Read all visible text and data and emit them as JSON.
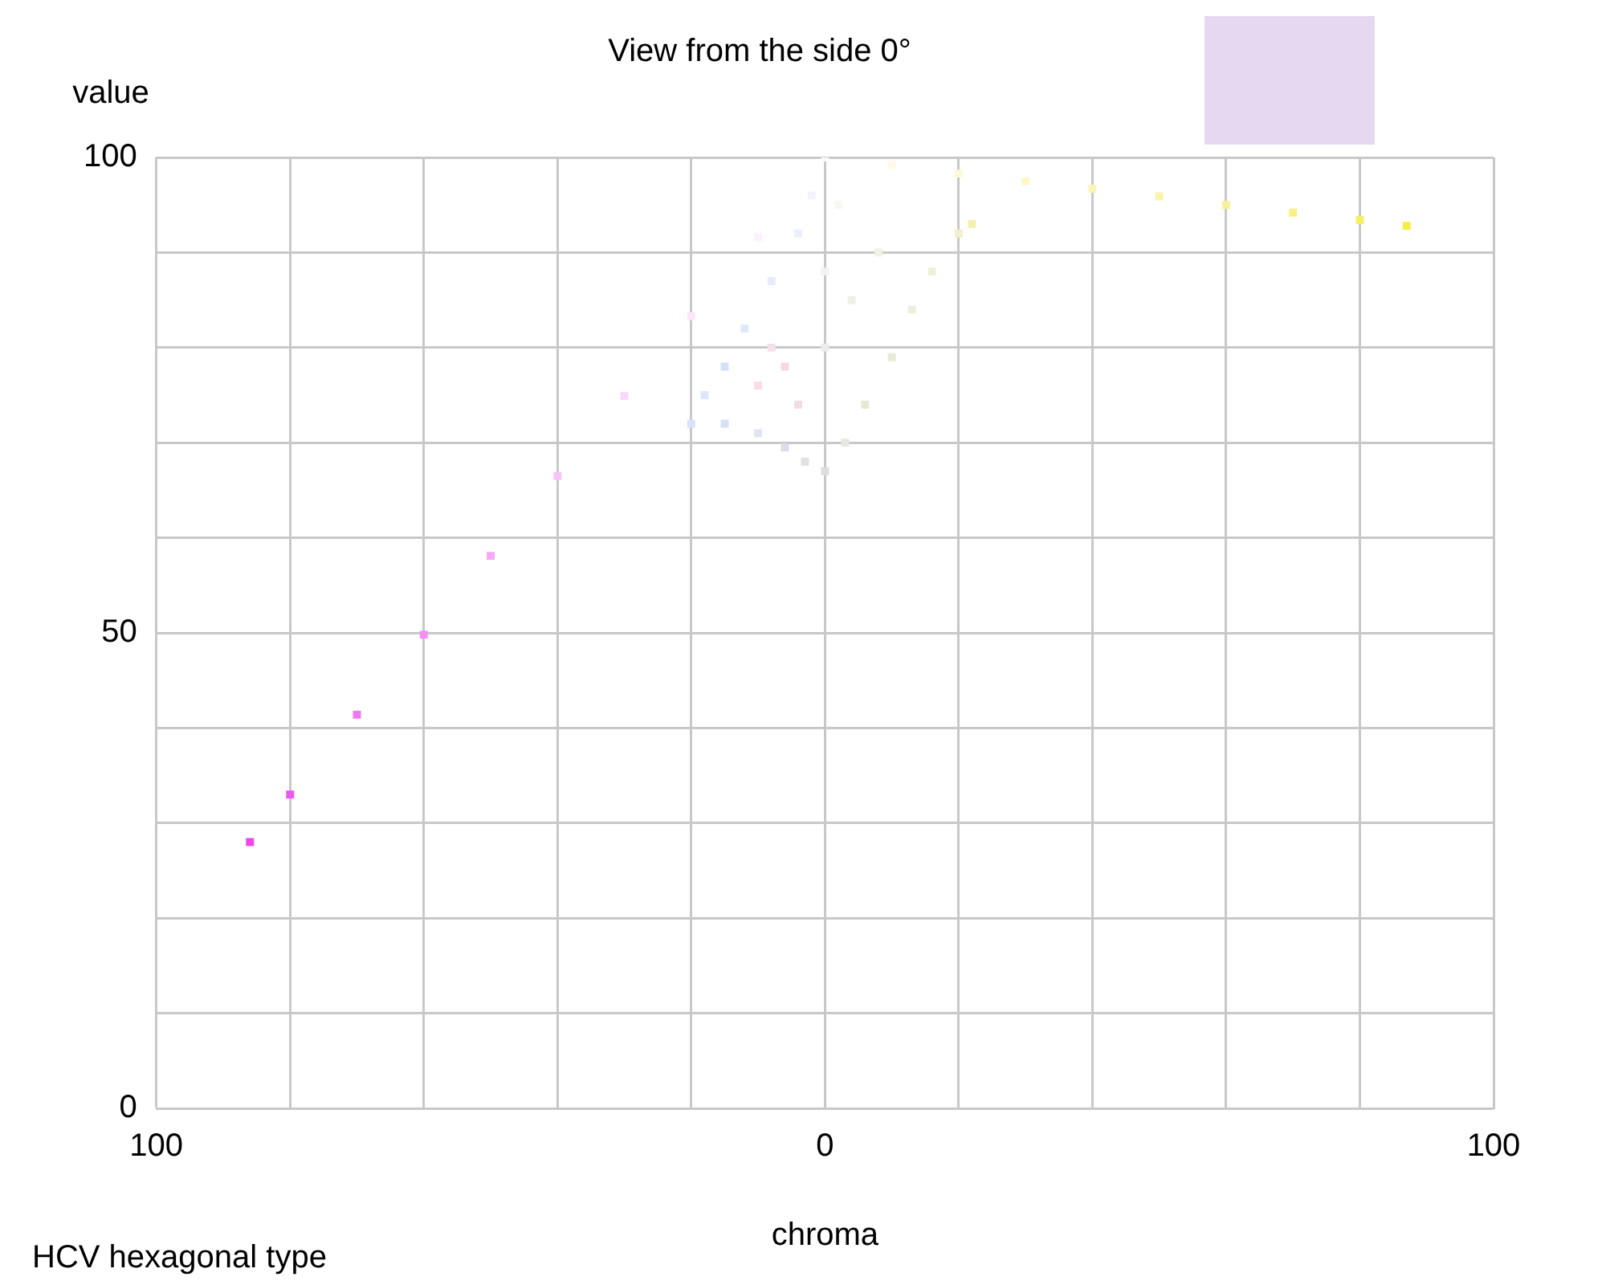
{
  "chart_data": {
    "type": "scatter",
    "title": "View from the side 0°",
    "xlabel": "chroma",
    "ylabel": "value",
    "annotations": [
      "HCV hexagonal type"
    ],
    "xlim": [
      -100,
      100
    ],
    "xticks": [
      {
        "value": -100,
        "label": "100"
      },
      {
        "value": -80,
        "label": null
      },
      {
        "value": -60,
        "label": null
      },
      {
        "value": -40,
        "label": null
      },
      {
        "value": -20,
        "label": null
      },
      0,
      {
        "value": 20,
        "label": null
      },
      {
        "value": 40,
        "label": null
      },
      {
        "value": 60,
        "label": null
      },
      {
        "value": 80,
        "label": null
      },
      100
    ],
    "ylim": [
      0,
      100
    ],
    "yticks": [
      0,
      {
        "value": 10,
        "label": null
      },
      {
        "value": 20,
        "label": null
      },
      {
        "value": 30,
        "label": null
      },
      {
        "value": 40,
        "label": null
      },
      50,
      {
        "value": 60,
        "label": null
      },
      {
        "value": 70,
        "label": null
      },
      {
        "value": 80,
        "label": null
      },
      {
        "value": 90,
        "label": null
      },
      100
    ],
    "grid": true,
    "legend": false,
    "marker": "square",
    "x": [
      -86,
      -80,
      -70,
      -60,
      -50,
      -40,
      -30,
      -20,
      -10,
      0,
      10,
      20,
      30,
      40,
      50,
      60,
      70,
      80,
      87,
      -20,
      -18,
      -15,
      -12,
      -8,
      -4,
      -2,
      0,
      -3,
      -6,
      -10,
      -15,
      -10,
      -6,
      -4,
      -8,
      3,
      6,
      10,
      13,
      16,
      20,
      22,
      4,
      8,
      2,
      0,
      0
    ],
    "values": [
      28,
      33,
      41.4,
      49.8,
      58.1,
      66.5,
      74.9,
      83.3,
      91.6,
      100,
      99.2,
      98.3,
      97.5,
      96.7,
      95.9,
      95,
      94.2,
      93.4,
      92.8,
      72,
      75,
      78,
      82,
      87,
      92,
      96,
      67,
      68,
      69.5,
      71,
      72,
      76,
      78,
      74,
      80,
      70,
      74,
      79,
      84,
      88,
      92,
      93,
      85,
      90,
      95,
      80,
      88
    ],
    "colors": [
      "#ee44ee",
      "#ef55ef",
      "#f277f2",
      "#f490f4",
      "#f6aaf6",
      "#f8c2f8",
      "#fad6fa",
      "#fce6fc",
      "#fdf0fd",
      "#fafafa",
      "#fffbe6",
      "#fef9d8",
      "#fdf7c8",
      "#fcf5b8",
      "#fbf3a8",
      "#faf298",
      "#f9f080",
      "#f8ef60",
      "#f7ee44",
      "#d8e2fa",
      "#dde6fa",
      "#d5e0fa",
      "#dfe8fa",
      "#e4ecfa",
      "#eaf0fa",
      "#f0f4fa",
      "#dddddd",
      "#e0e0e4",
      "#dcdcea",
      "#dfe3f2",
      "#d8e0f6",
      "#f8dce6",
      "#f5d8e4",
      "#f0dde6",
      "#f4e0ea",
      "#e8e8e0",
      "#e6e8d6",
      "#e8ead4",
      "#eceedc",
      "#f0f0d6",
      "#f2f0c8",
      "#f4f0b0",
      "#eef0e4",
      "#f2f2e4",
      "#f8f8f0",
      "#ececec",
      "#f2f2f2"
    ]
  }
}
